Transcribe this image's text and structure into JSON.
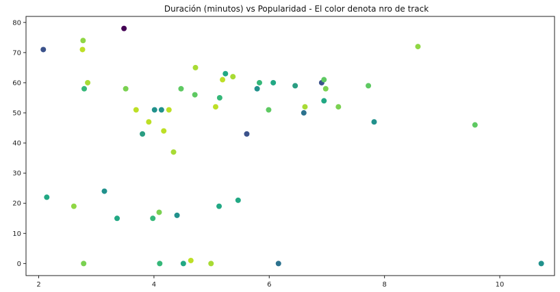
{
  "chart_data": {
    "type": "scatter",
    "title": "Duración (minutos) vs Popularidad - El color denota nro de track",
    "xlabel": "",
    "ylabel": "",
    "xlim": [
      1.78,
      10.95
    ],
    "ylim": [
      -4,
      82
    ],
    "x_ticks": [
      2,
      4,
      6,
      8,
      10
    ],
    "y_ticks": [
      0,
      10,
      20,
      30,
      40,
      50,
      60,
      70,
      80
    ],
    "grid": false,
    "colormap": "viridis",
    "points": [
      {
        "x": 3.48,
        "y": 78,
        "color": "#440154"
      },
      {
        "x": 2.08,
        "y": 71,
        "color": "#3b528b"
      },
      {
        "x": 2.77,
        "y": 74,
        "color": "#8fd744"
      },
      {
        "x": 2.76,
        "y": 71,
        "color": "#bddf26"
      },
      {
        "x": 2.85,
        "y": 60,
        "color": "#a8db34"
      },
      {
        "x": 2.79,
        "y": 58,
        "color": "#35b779"
      },
      {
        "x": 3.51,
        "y": 58,
        "color": "#7ad151"
      },
      {
        "x": 3.69,
        "y": 51,
        "color": "#bddf26"
      },
      {
        "x": 4.01,
        "y": 51,
        "color": "#21918c"
      },
      {
        "x": 4.13,
        "y": 51,
        "color": "#21918c"
      },
      {
        "x": 4.26,
        "y": 51,
        "color": "#bddf26"
      },
      {
        "x": 3.91,
        "y": 47,
        "color": "#bddf26"
      },
      {
        "x": 3.8,
        "y": 43,
        "color": "#2a9d82"
      },
      {
        "x": 4.17,
        "y": 44,
        "color": "#bddf26"
      },
      {
        "x": 4.34,
        "y": 37,
        "color": "#a8db34"
      },
      {
        "x": 4.47,
        "y": 58,
        "color": "#5ec962"
      },
      {
        "x": 4.72,
        "y": 65,
        "color": "#a8db34"
      },
      {
        "x": 4.71,
        "y": 56,
        "color": "#5ec962"
      },
      {
        "x": 5.07,
        "y": 52,
        "color": "#bddf26"
      },
      {
        "x": 5.14,
        "y": 55,
        "color": "#35b779"
      },
      {
        "x": 5.19,
        "y": 61,
        "color": "#bddf26"
      },
      {
        "x": 5.24,
        "y": 63,
        "color": "#22a884"
      },
      {
        "x": 5.37,
        "y": 62,
        "color": "#a8db34"
      },
      {
        "x": 5.61,
        "y": 43,
        "color": "#3b528b"
      },
      {
        "x": 5.79,
        "y": 58,
        "color": "#21918c"
      },
      {
        "x": 5.83,
        "y": 60,
        "color": "#35b779"
      },
      {
        "x": 6.07,
        "y": 60,
        "color": "#22a884"
      },
      {
        "x": 5.99,
        "y": 51,
        "color": "#5ec962"
      },
      {
        "x": 6.45,
        "y": 59,
        "color": "#2a9d82"
      },
      {
        "x": 6.6,
        "y": 50,
        "color": "#2c728e"
      },
      {
        "x": 6.62,
        "y": 52,
        "color": "#a8db34"
      },
      {
        "x": 6.91,
        "y": 60,
        "color": "#3b528b"
      },
      {
        "x": 6.95,
        "y": 61,
        "color": "#5ec962"
      },
      {
        "x": 6.98,
        "y": 58,
        "color": "#7ad151"
      },
      {
        "x": 6.95,
        "y": 54,
        "color": "#22a884"
      },
      {
        "x": 7.2,
        "y": 52,
        "color": "#7ad151"
      },
      {
        "x": 7.72,
        "y": 59,
        "color": "#5ec962"
      },
      {
        "x": 7.82,
        "y": 47,
        "color": "#21918c"
      },
      {
        "x": 8.58,
        "y": 72,
        "color": "#8fd744"
      },
      {
        "x": 9.57,
        "y": 46,
        "color": "#5ec962"
      },
      {
        "x": 2.14,
        "y": 22,
        "color": "#22a884"
      },
      {
        "x": 2.61,
        "y": 19,
        "color": "#8fd744"
      },
      {
        "x": 3.14,
        "y": 24,
        "color": "#21918c"
      },
      {
        "x": 3.36,
        "y": 15,
        "color": "#22a884"
      },
      {
        "x": 3.98,
        "y": 15,
        "color": "#35b779"
      },
      {
        "x": 4.09,
        "y": 17,
        "color": "#7ad151"
      },
      {
        "x": 4.4,
        "y": 16,
        "color": "#21918c"
      },
      {
        "x": 5.13,
        "y": 19,
        "color": "#22a884"
      },
      {
        "x": 5.46,
        "y": 21,
        "color": "#22a884"
      },
      {
        "x": 2.78,
        "y": 0,
        "color": "#7ad151"
      },
      {
        "x": 4.1,
        "y": 0,
        "color": "#35b779"
      },
      {
        "x": 4.51,
        "y": 0,
        "color": "#22a884"
      },
      {
        "x": 4.64,
        "y": 1,
        "color": "#bddf26"
      },
      {
        "x": 4.99,
        "y": 0,
        "color": "#a8db34"
      },
      {
        "x": 6.16,
        "y": 0,
        "color": "#2c728e"
      },
      {
        "x": 10.72,
        "y": 0,
        "color": "#21918c"
      }
    ]
  }
}
